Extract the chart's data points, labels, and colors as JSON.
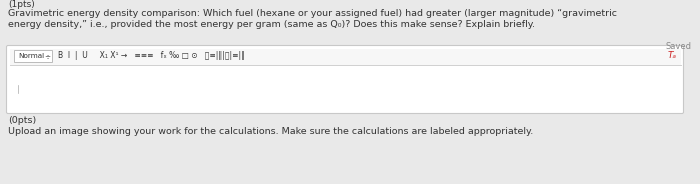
{
  "top_label": "(1pts)",
  "main_text_line1": "Gravimetric energy density comparison: Which fuel (hexane or your assigned fuel) had greater (larger magnitude) “gravimetric",
  "main_text_line2": "energy density,” i.e., provided the most energy per gram (same as Q₀)? Does this make sense? Explain briefly.",
  "saved_label": "Saved",
  "toolbar_border": "#c8c8c8",
  "bottom_pts": "(0pts)",
  "bottom_text": "Upload an image showing your work for the calculations. Make sure the calculations are labeled appropriately.",
  "text_color": "#333333",
  "light_text_color": "#888888",
  "editor_area_color": "#ffffff",
  "toolbar_bg": "#f7f7f7",
  "page_bg": "#e9e9e9",
  "toolbar_separator_color": "#d0d0d0",
  "normal_box_border": "#bbbbbb",
  "ta_color": "#cc2222"
}
